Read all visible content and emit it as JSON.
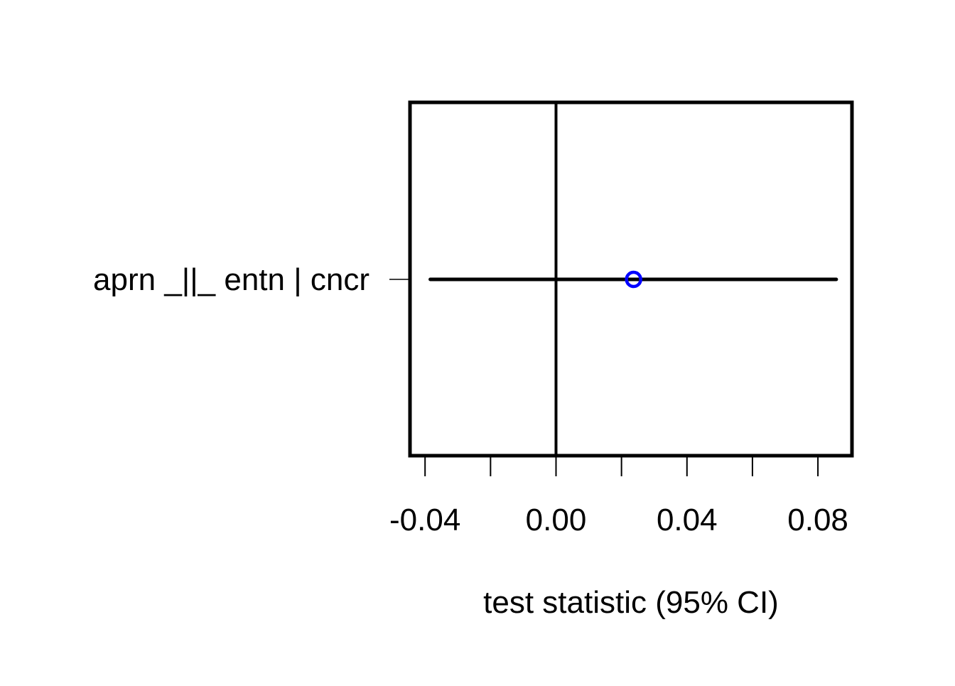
{
  "chart_data": {
    "type": "forest",
    "title": "",
    "xlabel": "test statistic (95% CI)",
    "ylabel": "",
    "xlim": [
      -0.0446,
      0.0904
    ],
    "xticks": [
      -0.04,
      -0.02,
      0.0,
      0.02,
      0.04,
      0.06,
      0.08
    ],
    "xtick_labels": [
      {
        "value": -0.04,
        "label": "-0.04"
      },
      {
        "value": 0.0,
        "label": "0.00"
      },
      {
        "value": 0.04,
        "label": "0.04"
      },
      {
        "value": 0.08,
        "label": "0.08"
      }
    ],
    "reference_line": 0,
    "grid": false,
    "rows": [
      {
        "label": "aprn _||_ entn | cncr",
        "estimate": 0.0237,
        "ci_low": -0.0384,
        "ci_high": 0.0856
      }
    ],
    "colors": {
      "point": "#0000ff",
      "ci_line": "#000000",
      "axis": "#000000"
    }
  }
}
